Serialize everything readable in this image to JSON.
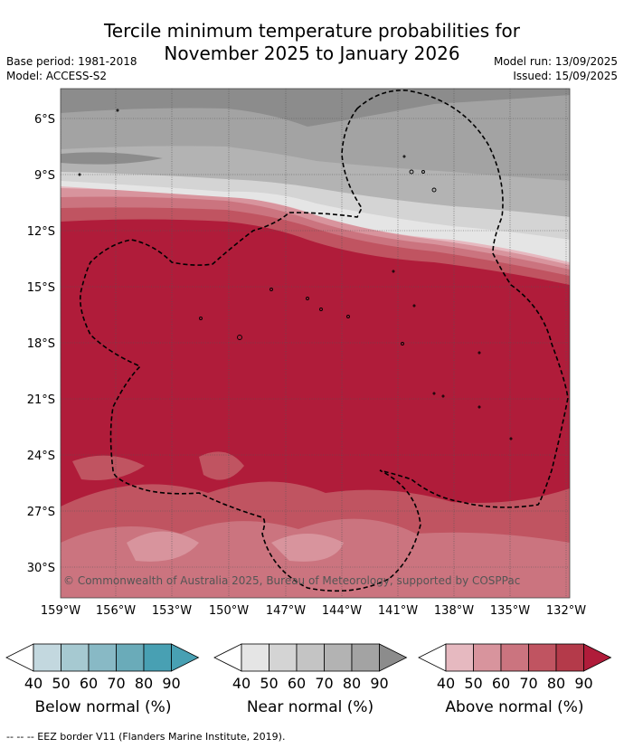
{
  "title_line1": "Tercile minimum temperature probabilities for",
  "title_line2": "November 2025 to January 2026",
  "base_period": "Base period: 1981-2018",
  "model": "Model: ACCESS-S2",
  "model_run": "Model run: 13/09/2025",
  "issued": "Issued: 15/09/2025",
  "map": {
    "lat_ticks": [
      "6°S",
      "9°S",
      "12°S",
      "15°S",
      "18°S",
      "21°S",
      "24°S",
      "27°S",
      "30°S"
    ],
    "lon_ticks": [
      "159°W",
      "156°W",
      "153°W",
      "150°W",
      "147°W",
      "144°W",
      "141°W",
      "138°W",
      "135°W",
      "132°W"
    ],
    "credit": "© Commonwealth of Australia 2025, Bureau of Meteorology, supported by COSPPac"
  },
  "legend": {
    "tick_values": [
      "40",
      "50",
      "60",
      "70",
      "80",
      "90"
    ],
    "below": {
      "label": "Below normal (%)",
      "colors": [
        "#ffffff",
        "#c3d8df",
        "#a6c9d1",
        "#88b9c5",
        "#6aabb9",
        "#48a0b3"
      ]
    },
    "near": {
      "label": "Near normal (%)",
      "colors": [
        "#ffffff",
        "#e5e5e5",
        "#d4d4d4",
        "#c4c4c4",
        "#b3b3b3",
        "#a3a3a3",
        "#8c8c8c"
      ]
    },
    "above": {
      "label": "Above normal (%)",
      "colors": [
        "#ffffff",
        "#e6b9c0",
        "#d8949d",
        "#cb747f",
        "#c05461",
        "#b43a4a",
        "#b01c3a"
      ]
    }
  },
  "footer": "-- -- -- EEZ border V11 (Flanders Marine Institute, 2019)."
}
